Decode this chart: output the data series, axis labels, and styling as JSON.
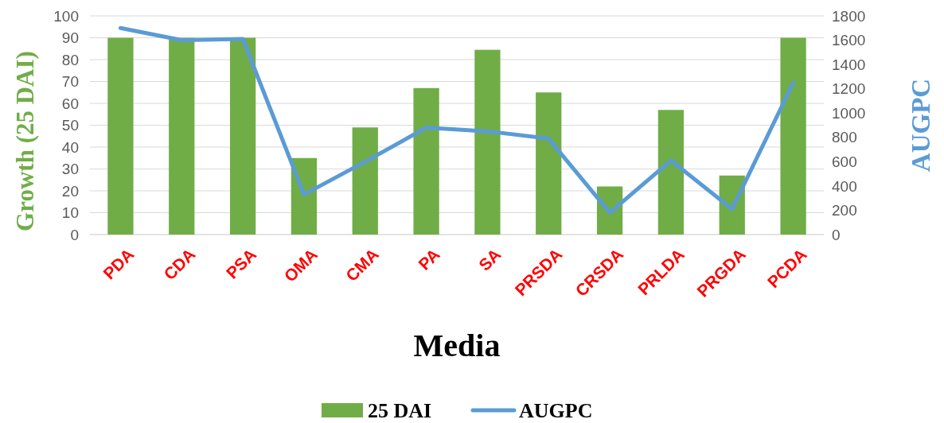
{
  "chart_data": {
    "type": "bar",
    "xlabel": "Media",
    "ylabel": "Growth (25 DAI)",
    "y2label": "AUGPC",
    "categories": [
      "PDA",
      "CDA",
      "PSA",
      "OMA",
      "CMA",
      "PA",
      "SA",
      "PRSDA",
      "CRSDA",
      "PRLDA",
      "PRGDA",
      "PCDA"
    ],
    "series": [
      {
        "name": "25 DAI",
        "color": "#70ad47",
        "values": [
          90,
          90,
          90,
          35,
          49,
          67,
          84.5,
          65,
          22,
          57,
          27,
          90
        ]
      },
      {
        "name": "AUGPC",
        "type": "line",
        "axis": "y2",
        "color": "#5b9bd5",
        "values": [
          1700,
          1600,
          1610,
          330,
          600,
          880,
          850,
          790,
          180,
          610,
          210,
          1250
        ]
      }
    ],
    "ylim": [
      0,
      100
    ],
    "yticks": [
      0,
      10,
      20,
      30,
      40,
      50,
      60,
      70,
      80,
      90,
      100
    ],
    "y2lim": [
      0,
      1800
    ],
    "y2ticks": [
      0,
      200,
      400,
      600,
      800,
      1000,
      1200,
      1400,
      1600,
      1800
    ],
    "grid": "y",
    "legend": "bottom",
    "line_style": "solid",
    "marker": "none"
  }
}
